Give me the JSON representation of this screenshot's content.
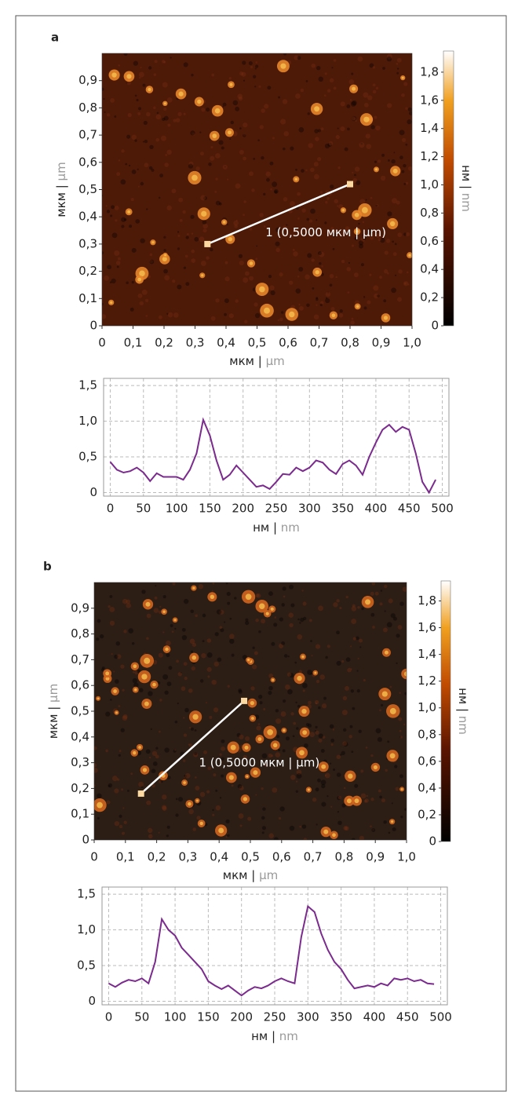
{
  "chart_data": [
    {
      "type": "image",
      "panel": "a",
      "xlim": [
        0,
        1
      ],
      "ylim": [
        0,
        1
      ],
      "xticks": [
        0,
        {
          "value": 0.1,
          "label": "0,1"
        },
        {
          "value": 0.2,
          "label": "0,2"
        },
        {
          "value": 0.3,
          "label": "0,3"
        },
        {
          "value": 0.4,
          "label": "0,4"
        },
        {
          "value": 0.5,
          "label": "0,5"
        },
        {
          "value": 0.6,
          "label": "0,6"
        },
        {
          "value": 0.7,
          "label": "0,7"
        },
        {
          "value": 0.8,
          "label": "0,8"
        },
        {
          "value": 0.9,
          "label": "0,9"
        },
        {
          "value": 1,
          "label": "1,0"
        }
      ],
      "yticks": [
        0,
        {
          "value": 0.1,
          "label": "0,1"
        },
        {
          "value": 0.2,
          "label": "0,2"
        },
        {
          "value": 0.3,
          "label": "0,3"
        },
        {
          "value": 0.4,
          "label": "0,4"
        },
        {
          "value": 0.5,
          "label": "0,5"
        },
        {
          "value": 0.6,
          "label": "0,6"
        },
        {
          "value": 0.7,
          "label": "0,7"
        },
        {
          "value": 0.8,
          "label": "0,8"
        },
        {
          "value": 0.9,
          "label": "0,9"
        }
      ],
      "xlabel": [
        "мкм |",
        "µm"
      ],
      "ylabel": [
        "мкм |",
        "µm"
      ],
      "clim": [
        0,
        1.95
      ],
      "cticks": [
        0,
        {
          "value": 0.2,
          "label": "0,2"
        },
        {
          "value": 0.4,
          "label": "0,4"
        },
        {
          "value": 0.6,
          "label": "0,6"
        },
        {
          "value": 0.8,
          "label": "0,8"
        },
        {
          "value": 1,
          "label": "1,0"
        },
        {
          "value": 1.2,
          "label": "1,2"
        },
        {
          "value": 1.4,
          "label": "1,4"
        },
        {
          "value": 1.6,
          "label": "1,6"
        },
        {
          "value": 1.8,
          "label": "1,8"
        }
      ],
      "clabel": [
        "нм |",
        "nm"
      ],
      "profile_line": {
        "start": [
          0.34,
          0.3
        ],
        "end": [
          0.8,
          0.52
        ],
        "label": "1 (0,5000 мкм | µm)"
      }
    },
    {
      "type": "line",
      "xlim": [
        -10,
        510
      ],
      "ylim": [
        -0.05,
        1.6
      ],
      "xticks": [
        0,
        50,
        100,
        150,
        200,
        250,
        300,
        350,
        400,
        450,
        500
      ],
      "yticks": [
        0,
        {
          "value": 0.5,
          "label": "0,5"
        },
        {
          "value": 1,
          "label": "1,0"
        },
        {
          "value": 1.5,
          "label": "1,5"
        }
      ],
      "grid": true,
      "xlabel": [
        "нм |",
        "nm"
      ],
      "x": [
        0,
        10,
        20,
        30,
        40,
        50,
        60,
        70,
        80,
        90,
        100,
        110,
        120,
        130,
        140,
        150,
        160,
        170,
        180,
        190,
        200,
        210,
        220,
        230,
        240,
        250,
        260,
        270,
        280,
        290,
        300,
        310,
        320,
        330,
        340,
        350,
        360,
        370,
        380,
        390,
        400,
        410,
        420,
        430,
        440,
        450,
        460,
        470,
        480,
        490
      ],
      "series": [
        {
          "color": "#7b2a8e",
          "values": [
            0.43,
            0.32,
            0.28,
            0.3,
            0.35,
            0.28,
            0.16,
            0.27,
            0.22,
            0.22,
            0.22,
            0.18,
            0.32,
            0.55,
            1.02,
            0.8,
            0.45,
            0.18,
            0.25,
            0.38,
            0.28,
            0.18,
            0.08,
            0.1,
            0.05,
            0.15,
            0.26,
            0.25,
            0.35,
            0.3,
            0.35,
            0.45,
            0.42,
            0.32,
            0.26,
            0.4,
            0.45,
            0.38,
            0.25,
            0.5,
            0.7,
            0.88,
            0.95,
            0.85,
            0.92,
            0.88,
            0.55,
            0.15,
            0.0,
            0.18
          ]
        }
      ]
    },
    {
      "type": "image",
      "panel": "b",
      "xlim": [
        0,
        1
      ],
      "ylim": [
        0,
        1
      ],
      "xticks": [
        0,
        {
          "value": 0.1,
          "label": "0,1"
        },
        {
          "value": 0.2,
          "label": "0,2"
        },
        {
          "value": 0.3,
          "label": "0,3"
        },
        {
          "value": 0.4,
          "label": "0,4"
        },
        {
          "value": 0.5,
          "label": "0,5"
        },
        {
          "value": 0.6,
          "label": "0,6"
        },
        {
          "value": 0.7,
          "label": "0,7"
        },
        {
          "value": 0.8,
          "label": "0,8"
        },
        {
          "value": 0.9,
          "label": "0,9"
        },
        {
          "value": 1,
          "label": "1,0"
        }
      ],
      "yticks": [
        0,
        {
          "value": 0.1,
          "label": "0,1"
        },
        {
          "value": 0.2,
          "label": "0,2"
        },
        {
          "value": 0.3,
          "label": "0,3"
        },
        {
          "value": 0.4,
          "label": "0,4"
        },
        {
          "value": 0.5,
          "label": "0,5"
        },
        {
          "value": 0.6,
          "label": "0,6"
        },
        {
          "value": 0.7,
          "label": "0,7"
        },
        {
          "value": 0.8,
          "label": "0,8"
        },
        {
          "value": 0.9,
          "label": "0,9"
        }
      ],
      "xlabel": [
        "мкм |",
        "µm"
      ],
      "ylabel": [
        "мкм |",
        "µm"
      ],
      "clim": [
        0,
        1.95
      ],
      "cticks": [
        0,
        {
          "value": 0.2,
          "label": "0,2"
        },
        {
          "value": 0.4,
          "label": "0,4"
        },
        {
          "value": 0.6,
          "label": "0,6"
        },
        {
          "value": 0.8,
          "label": "0,8"
        },
        {
          "value": 1,
          "label": "1,0"
        },
        {
          "value": 1.2,
          "label": "1,2"
        },
        {
          "value": 1.4,
          "label": "1,4"
        },
        {
          "value": 1.6,
          "label": "1,6"
        },
        {
          "value": 1.8,
          "label": "1,8"
        }
      ],
      "clabel": [
        "нм |",
        "nm"
      ],
      "profile_line": {
        "start": [
          0.15,
          0.18
        ],
        "end": [
          0.48,
          0.54
        ],
        "label": "1 (0,5000 мкм | µm)"
      }
    },
    {
      "type": "line",
      "xlim": [
        -10,
        510
      ],
      "ylim": [
        -0.05,
        1.6
      ],
      "xticks": [
        0,
        50,
        100,
        150,
        200,
        250,
        300,
        350,
        400,
        450,
        500
      ],
      "yticks": [
        0,
        {
          "value": 0.5,
          "label": "0,5"
        },
        {
          "value": 1,
          "label": "1,0"
        },
        {
          "value": 1.5,
          "label": "1,5"
        }
      ],
      "grid": true,
      "xlabel": [
        "нм |",
        "nm"
      ],
      "x": [
        0,
        10,
        20,
        30,
        40,
        50,
        60,
        70,
        80,
        90,
        100,
        110,
        120,
        130,
        140,
        150,
        160,
        170,
        180,
        190,
        200,
        210,
        220,
        230,
        240,
        250,
        260,
        270,
        280,
        290,
        300,
        310,
        320,
        330,
        340,
        350,
        360,
        370,
        380,
        390,
        400,
        410,
        420,
        430,
        440,
        450,
        460,
        470,
        480,
        490
      ],
      "series": [
        {
          "color": "#7b2a8e",
          "values": [
            0.25,
            0.2,
            0.26,
            0.3,
            0.28,
            0.32,
            0.25,
            0.55,
            1.15,
            1.0,
            0.92,
            0.75,
            0.65,
            0.55,
            0.45,
            0.28,
            0.22,
            0.17,
            0.22,
            0.15,
            0.08,
            0.15,
            0.2,
            0.18,
            0.22,
            0.28,
            0.32,
            0.28,
            0.25,
            0.9,
            1.33,
            1.25,
            0.95,
            0.72,
            0.55,
            0.45,
            0.3,
            0.18,
            0.2,
            0.22,
            0.2,
            0.25,
            0.22,
            0.32,
            0.3,
            0.32,
            0.28,
            0.3,
            0.25,
            0.24
          ]
        }
      ]
    }
  ]
}
